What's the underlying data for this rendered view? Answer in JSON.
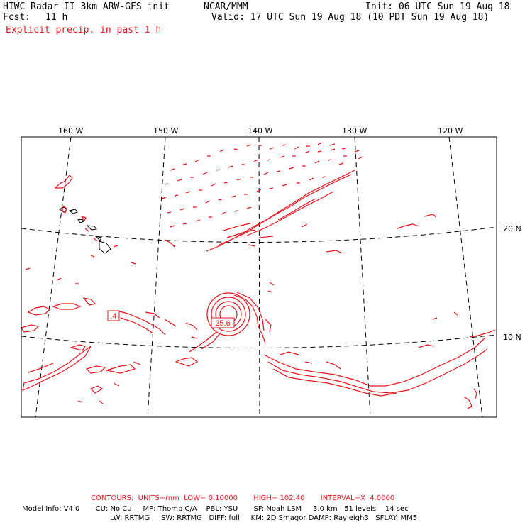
{
  "header": {
    "title": "HIWC Radar II 3km ARW-GFS init",
    "org": "NCAR/MMM",
    "init": "Init: 06 UTC Sun 19 Aug 18",
    "fcst_label": "Fcst:",
    "fcst_value": "11 h",
    "valid": "Valid: 17 UTC Sun 19 Aug 18 (10 PDT Sun 19 Aug 18)",
    "field": "Explicit precip. in past 1 h"
  },
  "map": {
    "lon_labels": [
      "160 W",
      "150 W",
      "140 W",
      "130 W",
      "120 W"
    ],
    "lat_labels": [
      "20 N",
      "10 N"
    ],
    "annotations": [
      "25.6",
      ".4"
    ],
    "contour_color": "#e8141c"
  },
  "footer": {
    "contours": "CONTOURS:  UNITS=mm  LOW= 0.10000       HIGH= 102.40       INTERVAL=X  4.0000",
    "model_line1": "Model Info: V4.0       CU: No Cu     MP: Thomp C/A    PBL: YSU       SF: Noah LSM     3.0 km   51 levels    14 sec",
    "model_line2": "LW: RRTMG     SW: RRTMG   DIFF: full     KM: 2D Smagor DAMP: Rayleigh3   SFLAY: MM5"
  }
}
